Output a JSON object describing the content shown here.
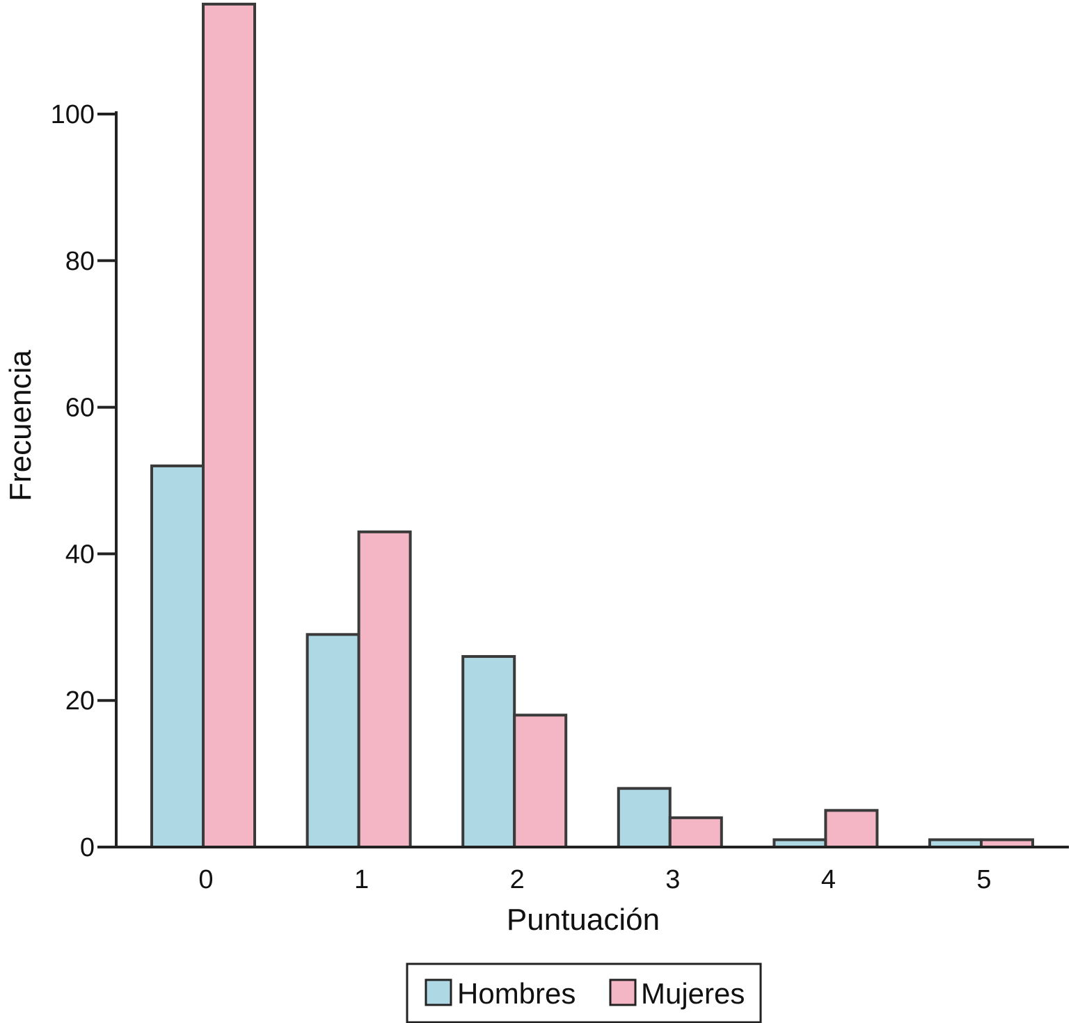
{
  "chart_data": {
    "type": "bar",
    "categories": [
      "0",
      "1",
      "2",
      "3",
      "4",
      "5"
    ],
    "series": [
      {
        "name": "Hombres",
        "values": [
          52,
          29,
          26,
          8,
          1,
          1
        ],
        "color": "#aed8e4"
      },
      {
        "name": "Mujeres",
        "values": [
          115,
          43,
          18,
          4,
          5,
          1
        ],
        "color": "#f4b6c4"
      }
    ],
    "xlabel": "Puntuación",
    "ylabel": "Frecuencia",
    "ylim": [
      0,
      115
    ],
    "yticks": [
      0,
      20,
      40,
      60,
      80,
      100
    ],
    "grid": false,
    "legend_position": "bottom-center"
  }
}
